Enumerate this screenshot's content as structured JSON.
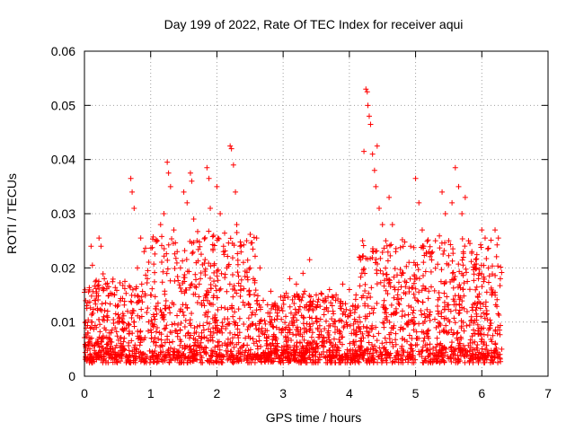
{
  "chart_data": {
    "type": "scatter",
    "title": "Day 199 of 2022, Rate Of TEC Index for receiver aqui",
    "xlabel": "GPS time / hours",
    "ylabel": "ROTI / TECUs",
    "xlim": [
      0,
      7
    ],
    "ylim": [
      0,
      0.06
    ],
    "x_ticks": [
      "0",
      "1",
      "2",
      "3",
      "4",
      "5",
      "6",
      "7"
    ],
    "y_ticks": [
      "0",
      "0.01",
      "0.02",
      "0.03",
      "0.04",
      "0.05",
      "0.06"
    ],
    "grid": true,
    "marker": "plus",
    "color": "#ff0000",
    "x_range_data": [
      0.0,
      6.3
    ],
    "series": [
      {
        "values_note_omitted": true,
        "points": [
          [
            0.0,
            0.0155
          ],
          [
            0.02,
            0.01
          ],
          [
            0.05,
            0.008
          ],
          [
            0.08,
            0.006
          ],
          [
            0.1,
            0.024
          ],
          [
            0.12,
            0.0205
          ],
          [
            0.15,
            0.014
          ],
          [
            0.18,
            0.009
          ],
          [
            0.22,
            0.0255
          ],
          [
            0.25,
            0.024
          ],
          [
            0.3,
            0.018
          ],
          [
            0.35,
            0.012
          ],
          [
            0.4,
            0.008
          ],
          [
            0.45,
            0.015
          ],
          [
            0.5,
            0.01
          ],
          [
            0.55,
            0.007
          ],
          [
            0.6,
            0.005
          ],
          [
            0.65,
            0.012
          ],
          [
            0.7,
            0.0365
          ],
          [
            0.72,
            0.034
          ],
          [
            0.75,
            0.031
          ],
          [
            0.8,
            0.02
          ],
          [
            0.85,
            0.0255
          ],
          [
            0.9,
            0.023
          ],
          [
            0.95,
            0.018
          ],
          [
            1.0,
            0.015
          ],
          [
            1.05,
            0.011
          ],
          [
            1.1,
            0.025
          ],
          [
            1.15,
            0.028
          ],
          [
            1.2,
            0.03
          ],
          [
            1.25,
            0.0395
          ],
          [
            1.27,
            0.0375
          ],
          [
            1.3,
            0.035
          ],
          [
            1.35,
            0.027
          ],
          [
            1.4,
            0.023
          ],
          [
            1.45,
            0.02
          ],
          [
            1.5,
            0.034
          ],
          [
            1.55,
            0.032
          ],
          [
            1.6,
            0.0375
          ],
          [
            1.62,
            0.036
          ],
          [
            1.65,
            0.029
          ],
          [
            1.7,
            0.025
          ],
          [
            1.75,
            0.018
          ],
          [
            1.8,
            0.014
          ],
          [
            1.85,
            0.0385
          ],
          [
            1.88,
            0.0365
          ],
          [
            1.9,
            0.031
          ],
          [
            1.95,
            0.026
          ],
          [
            2.0,
            0.035
          ],
          [
            2.05,
            0.03
          ],
          [
            2.1,
            0.024
          ],
          [
            2.15,
            0.02
          ],
          [
            2.2,
            0.0425
          ],
          [
            2.22,
            0.042
          ],
          [
            2.25,
            0.039
          ],
          [
            2.28,
            0.034
          ],
          [
            2.3,
            0.028
          ],
          [
            2.35,
            0.024
          ],
          [
            2.4,
            0.021
          ],
          [
            2.45,
            0.025
          ],
          [
            2.5,
            0.02
          ],
          [
            2.55,
            0.018
          ],
          [
            2.6,
            0.0255
          ],
          [
            2.65,
            0.02
          ],
          [
            2.7,
            0.014
          ],
          [
            2.8,
            0.011
          ],
          [
            2.9,
            0.009
          ],
          [
            3.0,
            0.014
          ],
          [
            3.1,
            0.018
          ],
          [
            3.2,
            0.017
          ],
          [
            3.3,
            0.019
          ],
          [
            3.4,
            0.0215
          ],
          [
            3.5,
            0.015
          ],
          [
            3.6,
            0.014
          ],
          [
            3.7,
            0.016
          ],
          [
            3.8,
            0.015
          ],
          [
            3.9,
            0.017
          ],
          [
            4.0,
            0.016
          ],
          [
            4.1,
            0.015
          ],
          [
            4.15,
            0.022
          ],
          [
            4.2,
            0.025
          ],
          [
            4.22,
            0.0415
          ],
          [
            4.25,
            0.053
          ],
          [
            4.27,
            0.0525
          ],
          [
            4.28,
            0.05
          ],
          [
            4.3,
            0.048
          ],
          [
            4.32,
            0.0465
          ],
          [
            4.35,
            0.041
          ],
          [
            4.38,
            0.038
          ],
          [
            4.4,
            0.035
          ],
          [
            4.42,
            0.0425
          ],
          [
            4.45,
            0.031
          ],
          [
            4.5,
            0.028
          ],
          [
            4.55,
            0.025
          ],
          [
            4.6,
            0.033
          ],
          [
            4.65,
            0.028
          ],
          [
            4.7,
            0.023
          ],
          [
            4.8,
            0.019
          ],
          [
            4.9,
            0.021
          ],
          [
            5.0,
            0.0365
          ],
          [
            5.05,
            0.032
          ],
          [
            5.1,
            0.027
          ],
          [
            5.2,
            0.023
          ],
          [
            5.3,
            0.025
          ],
          [
            5.4,
            0.034
          ],
          [
            5.45,
            0.03
          ],
          [
            5.5,
            0.025
          ],
          [
            5.55,
            0.032
          ],
          [
            5.6,
            0.0385
          ],
          [
            5.65,
            0.035
          ],
          [
            5.7,
            0.03
          ],
          [
            5.75,
            0.033
          ],
          [
            5.8,
            0.025
          ],
          [
            5.85,
            0.023
          ],
          [
            5.9,
            0.02
          ],
          [
            5.95,
            0.018
          ],
          [
            6.0,
            0.027
          ],
          [
            6.05,
            0.0255
          ],
          [
            6.1,
            0.02
          ],
          [
            6.15,
            0.015
          ],
          [
            6.2,
            0.027
          ],
          [
            6.25,
            0.0255
          ],
          [
            6.28,
            0.018
          ],
          [
            6.3,
            0.005
          ]
        ]
      }
    ]
  }
}
